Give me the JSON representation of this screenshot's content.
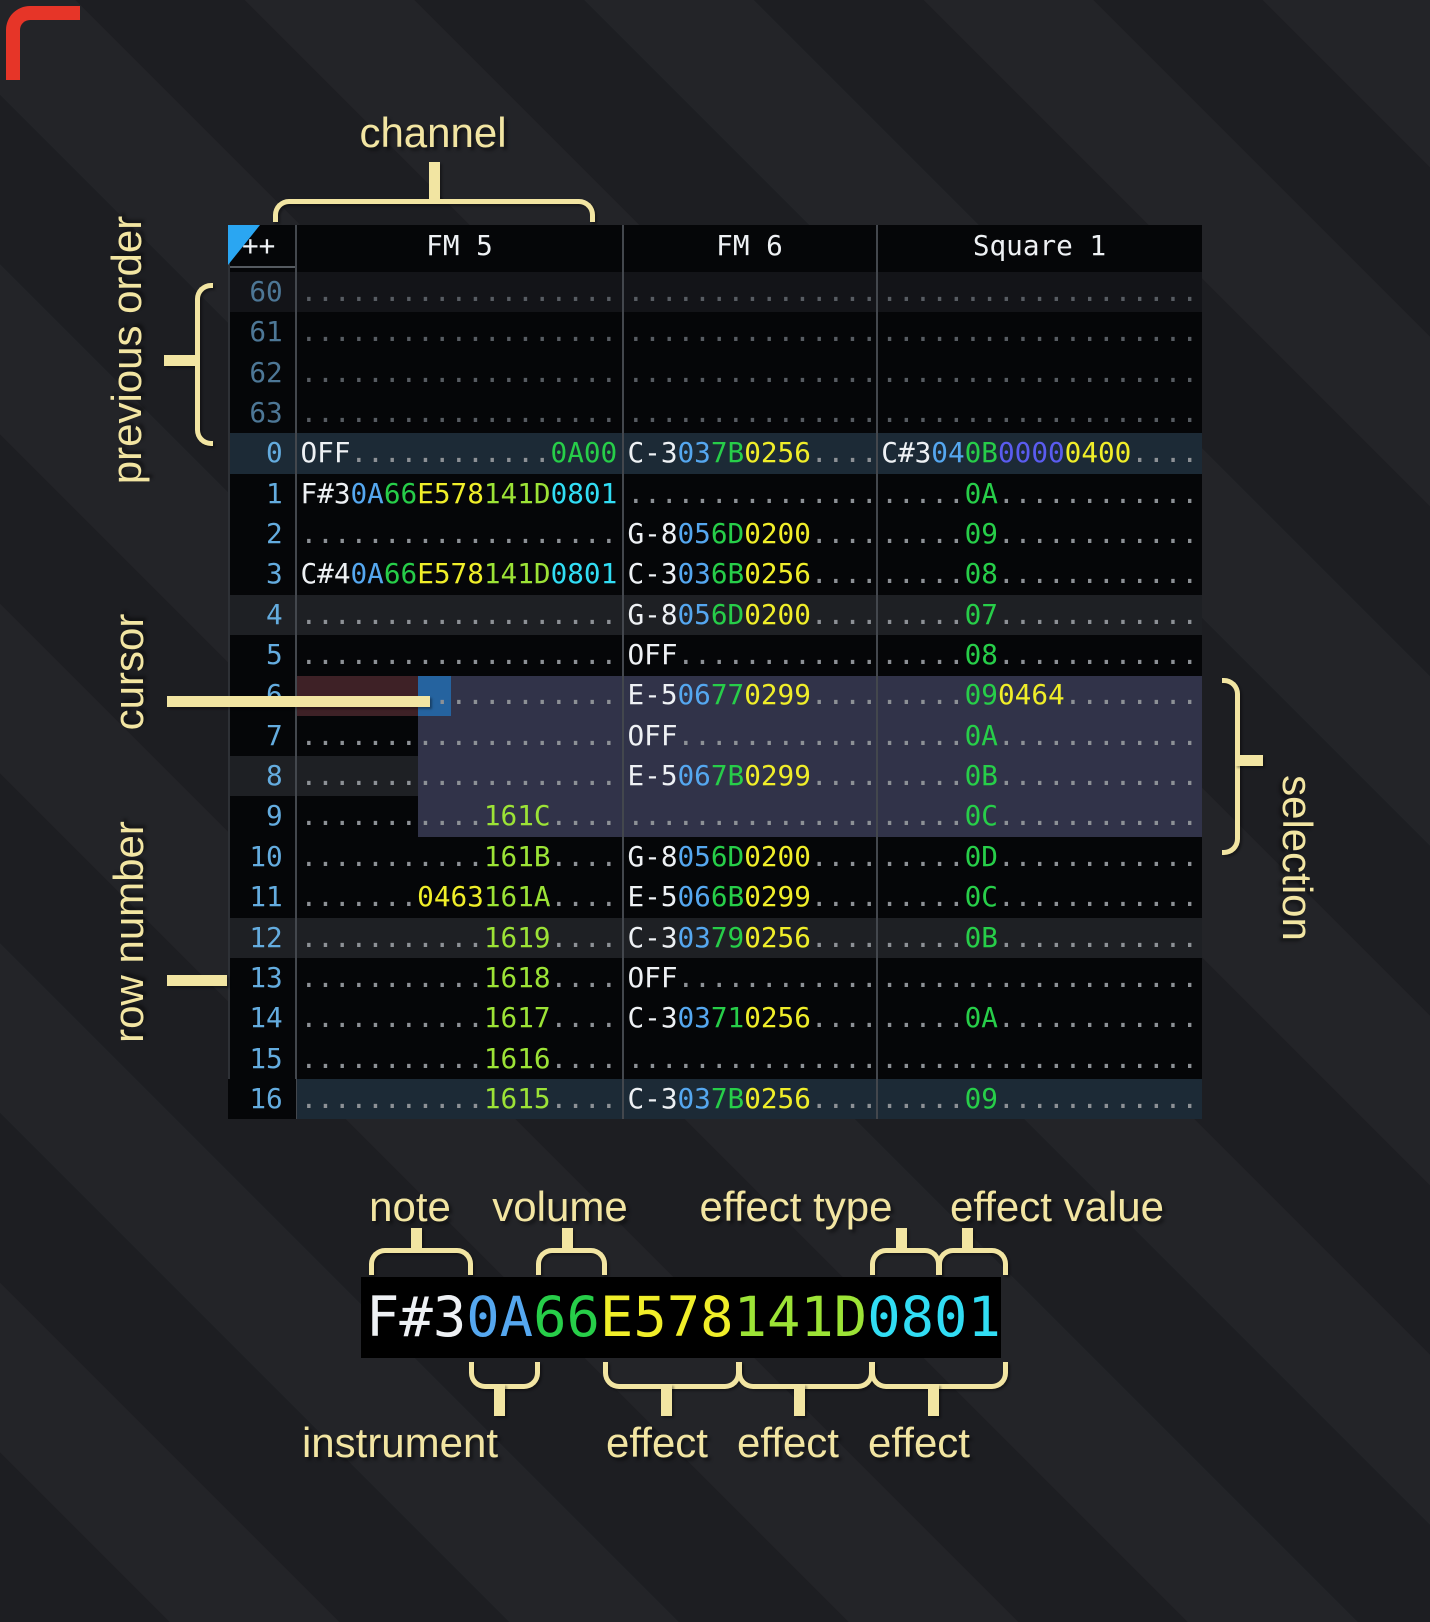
{
  "annotations": {
    "channel": "channel",
    "previous_order": "previous order",
    "cursor": "cursor",
    "row_number": "row number",
    "selection": "selection"
  },
  "legend": {
    "top_labels": {
      "note": "note",
      "volume": "volume",
      "effect_type": "effect type",
      "effect_value": "effect value"
    },
    "bottom_labels": {
      "instrument": "instrument",
      "effect1": "effect",
      "effect2": "effect",
      "effect3": "effect"
    },
    "example": [
      [
        "F#3",
        "w"
      ],
      [
        "0A",
        "i"
      ],
      [
        "66",
        "v"
      ],
      [
        "E578",
        "y"
      ],
      [
        "141D",
        "l"
      ],
      [
        "0801",
        "c"
      ]
    ]
  },
  "tracker": {
    "corner_label": "++",
    "channels": [
      {
        "name": "FM 5",
        "underline_color": "#29b4f2"
      },
      {
        "name": "FM 6",
        "underline_color": "#29b4f2"
      },
      {
        "name": "Square 1",
        "underline_color": "#3adf3f"
      }
    ],
    "rows": [
      {
        "num": "60",
        "prev": true,
        "hl": "prevhl",
        "cells": [
          [
            [
              "...................",
              "p"
            ]
          ],
          [
            [
              "...............",
              "p"
            ]
          ],
          [
            [
              "...................",
              "p"
            ]
          ]
        ]
      },
      {
        "num": "61",
        "prev": true,
        "hl": "",
        "cells": [
          [
            [
              "...................",
              "p"
            ]
          ],
          [
            [
              "...............",
              "p"
            ]
          ],
          [
            [
              "...................",
              "p"
            ]
          ]
        ]
      },
      {
        "num": "62",
        "prev": true,
        "hl": "",
        "cells": [
          [
            [
              "...................",
              "p"
            ]
          ],
          [
            [
              "...............",
              "p"
            ]
          ],
          [
            [
              "...................",
              "p"
            ]
          ]
        ]
      },
      {
        "num": "63",
        "prev": true,
        "hl": "",
        "cells": [
          [
            [
              "...................",
              "p"
            ]
          ],
          [
            [
              "...............",
              "p"
            ]
          ],
          [
            [
              "...................",
              "p"
            ]
          ]
        ]
      },
      {
        "num": "0",
        "prev": false,
        "hl": "hl2",
        "cells": [
          [
            [
              "OFF",
              "w"
            ],
            [
              "............",
              "d"
            ],
            [
              "0A00",
              "v"
            ]
          ],
          [
            [
              "C-3",
              "w"
            ],
            [
              "03",
              "i"
            ],
            [
              "7B",
              "v"
            ],
            [
              "0256",
              "y"
            ],
            [
              "....",
              "d"
            ]
          ],
          [
            [
              "C#3",
              "w"
            ],
            [
              "04",
              "i"
            ],
            [
              "0B",
              "v"
            ],
            [
              "0000",
              "n"
            ],
            [
              "0400",
              "y"
            ],
            [
              "....",
              "d"
            ]
          ]
        ]
      },
      {
        "num": "1",
        "prev": false,
        "hl": "",
        "cells": [
          [
            [
              "F#3",
              "w"
            ],
            [
              "0A",
              "i"
            ],
            [
              "66",
              "v"
            ],
            [
              "E578",
              "y"
            ],
            [
              "141D",
              "l"
            ],
            [
              "0801",
              "c"
            ]
          ],
          [
            [
              "...............",
              "d"
            ]
          ],
          [
            [
              ".....",
              "d"
            ],
            [
              "0A",
              "v"
            ],
            [
              "............",
              "d"
            ]
          ]
        ]
      },
      {
        "num": "2",
        "prev": false,
        "hl": "",
        "cells": [
          [
            [
              "...................",
              "d"
            ]
          ],
          [
            [
              "G-8",
              "w"
            ],
            [
              "05",
              "i"
            ],
            [
              "6D",
              "v"
            ],
            [
              "0200",
              "y"
            ],
            [
              "....",
              "d"
            ]
          ],
          [
            [
              ".....",
              "d"
            ],
            [
              "09",
              "v"
            ],
            [
              "............",
              "d"
            ]
          ]
        ]
      },
      {
        "num": "3",
        "prev": false,
        "hl": "",
        "cells": [
          [
            [
              "C#4",
              "w"
            ],
            [
              "0A",
              "i"
            ],
            [
              "66",
              "v"
            ],
            [
              "E578",
              "y"
            ],
            [
              "141D",
              "l"
            ],
            [
              "0801",
              "c"
            ]
          ],
          [
            [
              "C-3",
              "w"
            ],
            [
              "03",
              "i"
            ],
            [
              "6B",
              "v"
            ],
            [
              "0256",
              "y"
            ],
            [
              "....",
              "d"
            ]
          ],
          [
            [
              ".....",
              "d"
            ],
            [
              "08",
              "v"
            ],
            [
              "............",
              "d"
            ]
          ]
        ]
      },
      {
        "num": "4",
        "prev": false,
        "hl": "hl1",
        "cells": [
          [
            [
              "...................",
              "d"
            ]
          ],
          [
            [
              "G-8",
              "w"
            ],
            [
              "05",
              "i"
            ],
            [
              "6D",
              "v"
            ],
            [
              "0200",
              "y"
            ],
            [
              "....",
              "d"
            ]
          ],
          [
            [
              ".....",
              "d"
            ],
            [
              "07",
              "v"
            ],
            [
              "............",
              "d"
            ]
          ]
        ]
      },
      {
        "num": "5",
        "prev": false,
        "hl": "",
        "cells": [
          [
            [
              "...................",
              "d"
            ]
          ],
          [
            [
              "OFF",
              "w"
            ],
            [
              "............",
              "d"
            ]
          ],
          [
            [
              ".....",
              "d"
            ],
            [
              "08",
              "v"
            ],
            [
              "............",
              "d"
            ]
          ]
        ]
      },
      {
        "num": "6",
        "prev": false,
        "hl": "",
        "cells": [
          [
            [
              "...................",
              "d"
            ]
          ],
          [
            [
              "E-5",
              "w"
            ],
            [
              "06",
              "i"
            ],
            [
              "77",
              "v"
            ],
            [
              "0299",
              "y"
            ],
            [
              "....",
              "d"
            ]
          ],
          [
            [
              ".....",
              "d"
            ],
            [
              "09",
              "v"
            ],
            [
              "0464",
              "y"
            ],
            [
              "........",
              "d"
            ]
          ]
        ]
      },
      {
        "num": "7",
        "prev": false,
        "hl": "",
        "cells": [
          [
            [
              "...................",
              "d"
            ]
          ],
          [
            [
              "OFF",
              "w"
            ],
            [
              "............",
              "d"
            ]
          ],
          [
            [
              ".....",
              "d"
            ],
            [
              "0A",
              "v"
            ],
            [
              "............",
              "d"
            ]
          ]
        ]
      },
      {
        "num": "8",
        "prev": false,
        "hl": "hl1",
        "cells": [
          [
            [
              "...................",
              "d"
            ]
          ],
          [
            [
              "E-5",
              "w"
            ],
            [
              "06",
              "i"
            ],
            [
              "7B",
              "v"
            ],
            [
              "0299",
              "y"
            ],
            [
              "....",
              "d"
            ]
          ],
          [
            [
              ".....",
              "d"
            ],
            [
              "0B",
              "v"
            ],
            [
              "............",
              "d"
            ]
          ]
        ]
      },
      {
        "num": "9",
        "prev": false,
        "hl": "",
        "cells": [
          [
            [
              "...........",
              "d"
            ],
            [
              "161C",
              "l"
            ],
            [
              "....",
              "d"
            ]
          ],
          [
            [
              "...............",
              "d"
            ]
          ],
          [
            [
              ".....",
              "d"
            ],
            [
              "0C",
              "v"
            ],
            [
              "............",
              "d"
            ]
          ]
        ]
      },
      {
        "num": "10",
        "prev": false,
        "hl": "",
        "cells": [
          [
            [
              "...........",
              "d"
            ],
            [
              "161B",
              "l"
            ],
            [
              "....",
              "d"
            ]
          ],
          [
            [
              "G-8",
              "w"
            ],
            [
              "05",
              "i"
            ],
            [
              "6D",
              "v"
            ],
            [
              "0200",
              "y"
            ],
            [
              "....",
              "d"
            ]
          ],
          [
            [
              ".....",
              "d"
            ],
            [
              "0D",
              "v"
            ],
            [
              "............",
              "d"
            ]
          ]
        ]
      },
      {
        "num": "11",
        "prev": false,
        "hl": "",
        "cells": [
          [
            [
              ".......",
              "d"
            ],
            [
              "0463",
              "y"
            ],
            [
              "161A",
              "l"
            ],
            [
              "....",
              "d"
            ]
          ],
          [
            [
              "E-5",
              "w"
            ],
            [
              "06",
              "i"
            ],
            [
              "6B",
              "v"
            ],
            [
              "0299",
              "y"
            ],
            [
              "....",
              "d"
            ]
          ],
          [
            [
              ".....",
              "d"
            ],
            [
              "0C",
              "v"
            ],
            [
              "............",
              "d"
            ]
          ]
        ]
      },
      {
        "num": "12",
        "prev": false,
        "hl": "hl1",
        "cells": [
          [
            [
              "...........",
              "d"
            ],
            [
              "1619",
              "l"
            ],
            [
              "....",
              "d"
            ]
          ],
          [
            [
              "C-3",
              "w"
            ],
            [
              "03",
              "i"
            ],
            [
              "79",
              "v"
            ],
            [
              "0256",
              "y"
            ],
            [
              "....",
              "d"
            ]
          ],
          [
            [
              ".....",
              "d"
            ],
            [
              "0B",
              "v"
            ],
            [
              "............",
              "d"
            ]
          ]
        ]
      },
      {
        "num": "13",
        "prev": false,
        "hl": "",
        "cells": [
          [
            [
              "...........",
              "d"
            ],
            [
              "1618",
              "l"
            ],
            [
              "....",
              "d"
            ]
          ],
          [
            [
              "OFF",
              "w"
            ],
            [
              "............",
              "d"
            ]
          ],
          [
            [
              "...................",
              "d"
            ]
          ]
        ]
      },
      {
        "num": "14",
        "prev": false,
        "hl": "",
        "cells": [
          [
            [
              "...........",
              "d"
            ],
            [
              "1617",
              "l"
            ],
            [
              "....",
              "d"
            ]
          ],
          [
            [
              "C-3",
              "w"
            ],
            [
              "03",
              "i"
            ],
            [
              "71",
              "v"
            ],
            [
              "0256",
              "y"
            ],
            [
              "....",
              "d"
            ]
          ],
          [
            [
              ".....",
              "d"
            ],
            [
              "0A",
              "v"
            ],
            [
              "............",
              "d"
            ]
          ]
        ]
      },
      {
        "num": "15",
        "prev": false,
        "hl": "",
        "cells": [
          [
            [
              "...........",
              "d"
            ],
            [
              "1616",
              "l"
            ],
            [
              "....",
              "d"
            ]
          ],
          [
            [
              "...............",
              "d"
            ]
          ],
          [
            [
              "...................",
              "d"
            ]
          ]
        ]
      },
      {
        "num": "16",
        "prev": false,
        "hl": "hl2 hl2c",
        "cells": [
          [
            [
              "...........",
              "d"
            ],
            [
              "1615",
              "l"
            ],
            [
              "....",
              "d"
            ]
          ],
          [
            [
              "C-3",
              "w"
            ],
            [
              "03",
              "i"
            ],
            [
              "7B",
              "v"
            ],
            [
              "0256",
              "y"
            ],
            [
              "....",
              "d"
            ]
          ],
          [
            [
              ".....",
              "d"
            ],
            [
              "09",
              "v"
            ],
            [
              "............",
              "d"
            ]
          ]
        ]
      }
    ]
  },
  "colors": {
    "annotation_cream": "#f2e5a2",
    "cursor_blue": "#25639f",
    "cursor_row_maroon": "#3e2126",
    "selection_bg": "#313349",
    "row_highlight_minor": "#1e2024",
    "row_highlight_major": "#1c2a36",
    "fm_underline_cyan": "#29b4f2",
    "square_underline_green": "#3adf3f",
    "note_white": "#eef1f4",
    "instrument_blue": "#55a7ef",
    "volume_green": "#27ce49",
    "effect_yellow": "#f0ee29",
    "effect_lime": "#9ce336",
    "effect_cyan": "#31ddf4",
    "effect_indigo": "#5a5cf0",
    "row_number_blue": "#64acdf",
    "prev_row_number_blue": "#4d7796",
    "corner_mark_red": "#e63528",
    "corner_triangle_blue": "#2aa6f2"
  }
}
